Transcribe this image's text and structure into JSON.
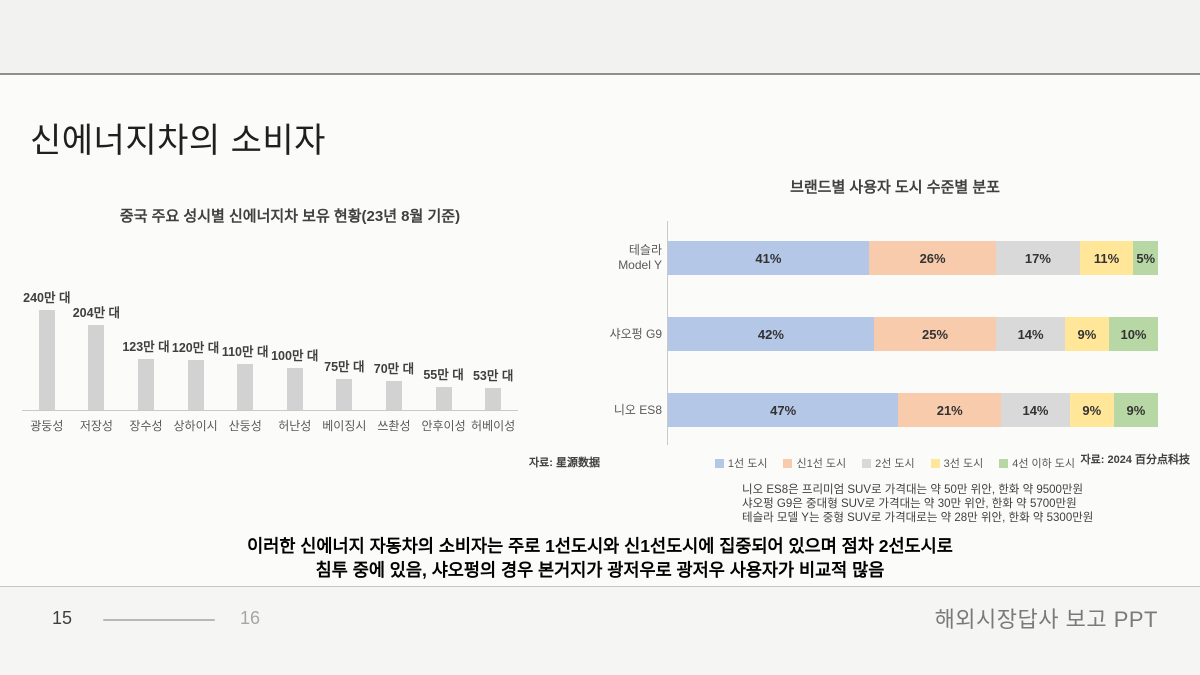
{
  "slide_title": "신에너지차의 소비자",
  "insight": {
    "line1": "이러한 신에너지 자동차의 소비자는 주로 1선도시와 신1선도시에 집중되어 있으며 점차 2선도시로",
    "line2": "침투 중에 있음, 샤오펑의 경우 본거지가 광저우로 광저우 사용자가 비교적 많음"
  },
  "footer": {
    "page_current": "15",
    "page_next": "16",
    "doc_label": "해외시장답사 보고 PPT"
  },
  "chart_data": [
    {
      "type": "bar",
      "title": "중국 주요 성시별 신에너지차 보유 현황(23년 8월 기준)",
      "categories": [
        "광둥성",
        "저장성",
        "장수성",
        "상하이시",
        "산둥성",
        "허난성",
        "베이징시",
        "쓰촨성",
        "안후이성",
        "허베이성"
      ],
      "values": [
        240,
        204,
        123,
        120,
        110,
        100,
        75,
        70,
        55,
        53
      ],
      "value_label_suffix": "만 대",
      "ylim": [
        0,
        240
      ],
      "bar_color": "#d2d2d2",
      "grid": false,
      "source": "자료: 星源数据"
    },
    {
      "type": "bar",
      "stacked": true,
      "orientation": "horizontal",
      "title": "브랜드별 사용자 도시 수준별 분포",
      "categories": [
        "테슬라 Model Y",
        "샤오펑 G9",
        "니오 ES8"
      ],
      "category_lines": [
        [
          "테슬라",
          "Model Y"
        ],
        [
          "샤오펑 G9"
        ],
        [
          "니오 ES8"
        ]
      ],
      "series": [
        {
          "name": "1선 도시",
          "color": "#b4c7e7",
          "values": [
            41,
            42,
            47
          ]
        },
        {
          "name": "신1선 도시",
          "color": "#f8cbad",
          "values": [
            26,
            25,
            21
          ]
        },
        {
          "name": "2선 도시",
          "color": "#d9d9d9",
          "values": [
            17,
            14,
            14
          ]
        },
        {
          "name": "3선 도시",
          "color": "#ffe699",
          "values": [
            11,
            9,
            9
          ]
        },
        {
          "name": "4선 이하 도시",
          "color": "#b7d7a4",
          "values": [
            5,
            10,
            9
          ]
        }
      ],
      "unit": "%",
      "xlim": [
        0,
        100
      ],
      "legend_position": "bottom",
      "source": "자료: 2024 百分点科技",
      "notes": [
        "니오 ES8은 프리미엄 SUV로 가격대는 약 50만 위안, 한화 약 9500만원",
        "샤오펑 G9은 중대형 SUV로 가격대는 약 30만 위안, 한화 약 5700만원",
        "테슬라 모델 Y는 중형 SUV로 가격대로는 약 28만 위안, 한화 약 5300만원"
      ]
    }
  ]
}
